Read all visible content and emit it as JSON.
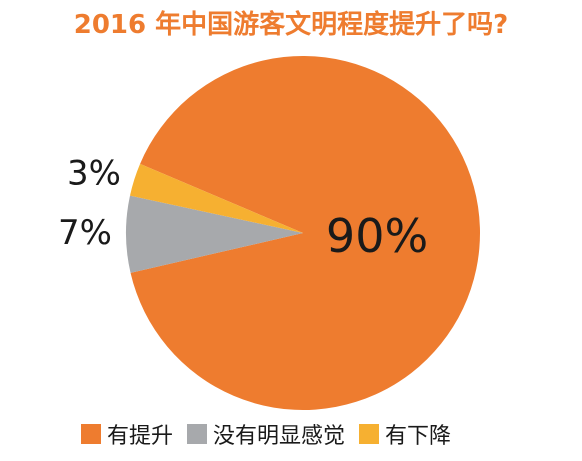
{
  "chart_data": {
    "type": "pie",
    "title": "2016 年中国游客文明程度提升了吗?",
    "title_color": "#EE7C2F",
    "categories": [
      "有提升",
      "没有明显感觉",
      "有下降"
    ],
    "values": [
      90,
      7,
      3
    ],
    "value_labels": [
      "90%",
      "7%",
      "3%"
    ],
    "colors": [
      "#EE7C2F",
      "#A7A9AC",
      "#F6B031"
    ],
    "legend_position": "bottom"
  }
}
